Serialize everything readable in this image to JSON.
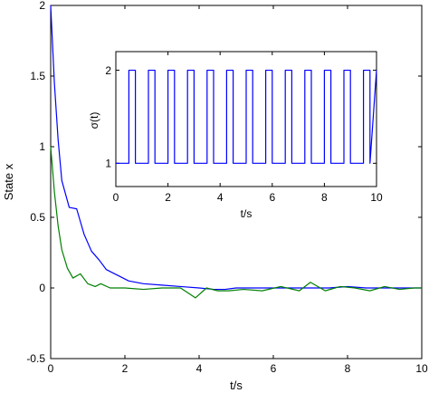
{
  "chart_data": [
    {
      "type": "line",
      "xlabel": "t/s",
      "ylabel": "State x",
      "xlim": [
        0,
        10
      ],
      "ylim": [
        -0.5,
        2
      ],
      "xticks": [
        "0",
        "2",
        "4",
        "6",
        "8",
        "10"
      ],
      "yticks": [
        "-0.5",
        "0",
        "0.5",
        "1",
        "1.5",
        "2"
      ],
      "grid": false,
      "series": [
        {
          "color": "#0000ff",
          "x": [
            0,
            0.1,
            0.2,
            0.3,
            0.5,
            0.7,
            0.9,
            1.1,
            1.3,
            1.5,
            1.8,
            2.1,
            2.5,
            3.0,
            3.5,
            4.0,
            4.4,
            4.7,
            5.0,
            5.5,
            6.0,
            6.5,
            7.0,
            7.5,
            8.0,
            8.5,
            9.0,
            9.5,
            10.0
          ],
          "values": [
            2.0,
            1.45,
            1.05,
            0.76,
            0.57,
            0.56,
            0.38,
            0.26,
            0.2,
            0.13,
            0.09,
            0.05,
            0.03,
            0.02,
            0.01,
            0.0,
            -0.01,
            -0.01,
            0.0,
            0.0,
            0.0,
            0.0,
            0.0,
            0.0,
            0.01,
            0.0,
            0.0,
            0.0,
            0.0
          ]
        },
        {
          "color": "#008000",
          "x": [
            0,
            0.1,
            0.2,
            0.3,
            0.45,
            0.6,
            0.8,
            1.0,
            1.2,
            1.35,
            1.6,
            2.0,
            2.5,
            3.0,
            3.5,
            3.9,
            4.2,
            4.5,
            4.8,
            5.2,
            5.7,
            6.2,
            6.7,
            7.0,
            7.4,
            7.8,
            8.2,
            8.6,
            9.0,
            9.4,
            9.8,
            10.0
          ],
          "values": [
            1.0,
            0.68,
            0.44,
            0.27,
            0.14,
            0.07,
            0.1,
            0.03,
            0.01,
            0.03,
            0.0,
            0.0,
            -0.01,
            0.0,
            0.0,
            -0.07,
            0.0,
            -0.02,
            -0.02,
            -0.01,
            -0.02,
            0.01,
            -0.02,
            0.04,
            -0.02,
            0.01,
            0.0,
            -0.02,
            0.01,
            -0.01,
            0.0,
            0.0
          ]
        }
      ]
    },
    {
      "type": "line",
      "xlabel": "t/s",
      "ylabel": "σ(t)",
      "xlim": [
        0,
        10
      ],
      "ylim": [
        0.75,
        2.2
      ],
      "xticks": [
        "0",
        "2",
        "4",
        "6",
        "8",
        "10"
      ],
      "yticks": [
        "1",
        "2"
      ],
      "grid": false,
      "series": [
        {
          "color": "#0000ff",
          "x": [
            0,
            0.5,
            0.5,
            0.75,
            0.75,
            1.25,
            1.25,
            1.5,
            1.5,
            2.0,
            2.0,
            2.25,
            2.25,
            2.75,
            2.75,
            3.0,
            3.0,
            3.5,
            3.5,
            3.75,
            3.75,
            4.25,
            4.25,
            4.5,
            4.5,
            5.0,
            5.0,
            5.25,
            5.25,
            5.75,
            5.75,
            6.0,
            6.0,
            6.5,
            6.5,
            6.75,
            6.75,
            7.25,
            7.25,
            7.5,
            7.5,
            8.0,
            8.0,
            8.25,
            8.25,
            8.75,
            8.75,
            9.0,
            9.0,
            9.5,
            9.5,
            9.75,
            9.75,
            10.0
          ],
          "values": [
            1,
            1,
            2,
            2,
            1,
            1,
            2,
            2,
            1,
            1,
            2,
            2,
            1,
            1,
            2,
            2,
            1,
            1,
            2,
            2,
            1,
            1,
            2,
            2,
            1,
            1,
            2,
            2,
            1,
            1,
            2,
            2,
            1,
            1,
            2,
            2,
            1,
            1,
            2,
            2,
            1,
            1,
            2,
            2,
            1,
            1,
            2,
            2,
            1,
            1,
            2,
            2,
            1,
            2
          ]
        }
      ]
    }
  ]
}
